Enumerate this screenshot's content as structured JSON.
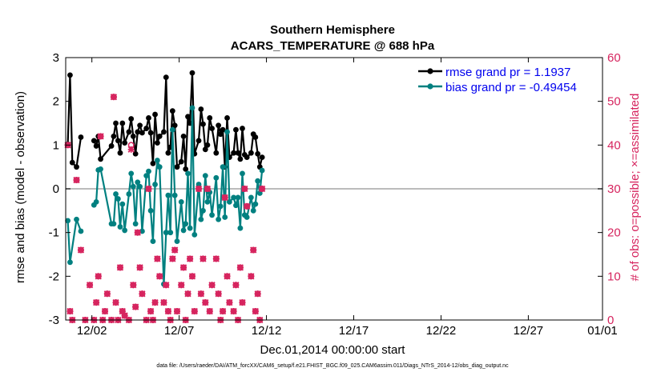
{
  "chart_data": {
    "type": "line",
    "title_line1": "Southern Hemisphere",
    "title_line2": "ACARS_TEMPERATURE @ 688 hPa",
    "xlabel": "Dec.01,2014 00:00:00 start",
    "ylabel_left": "rmse and bias (model - observation)",
    "ylabel_right": "# of obs: o=possible; ×=assimilated",
    "footer": "data file: /Users/raeder/DAI/ATM_forcXX/CAM6_setup/f.e21.FHIST_BGC.f09_025.CAM6assim.011/Diags_NTrS_2014-12/obs_diag_output.nc",
    "xlim": [
      0.5,
      31.25
    ],
    "ylim_left": [
      -3,
      3
    ],
    "ylim_right": [
      0,
      60
    ],
    "x_ticks": [
      {
        "x": 2,
        "label": "12/02"
      },
      {
        "x": 7,
        "label": "12/07"
      },
      {
        "x": 12,
        "label": "12/12"
      },
      {
        "x": 17,
        "label": "12/17"
      },
      {
        "x": 22,
        "label": "12/22"
      },
      {
        "x": 27,
        "label": "12/27"
      },
      {
        "x": 32,
        "label": "01/01"
      }
    ],
    "y_ticks_left": [
      -3,
      -2,
      -1,
      0,
      1,
      2,
      3
    ],
    "y_ticks_right": [
      0,
      10,
      20,
      30,
      40,
      50,
      60
    ],
    "colors": {
      "rmse": "#000000",
      "bias": "#008080",
      "obs": "#d6245e",
      "legend_text": "#0000ee",
      "zero_line": "#bbbbbb"
    },
    "series": [
      {
        "name": "rmse grand pr = 1.1937",
        "segments": [
          [
            [
              0.62,
              1.02
            ],
            [
              0.75,
              2.6
            ],
            [
              0.88,
              0.6
            ],
            [
              1.12,
              0.5
            ],
            [
              1.37,
              1.18
            ]
          ],
          [
            [
              2.12,
              1.1
            ],
            [
              2.25,
              0.98
            ],
            [
              2.37,
              1.2
            ],
            [
              2.5,
              0.68
            ],
            [
              3.12,
              0.98
            ],
            [
              3.25,
              1.2
            ],
            [
              3.37,
              1.5
            ],
            [
              3.5,
              1.1
            ],
            [
              3.62,
              0.82
            ],
            [
              3.75,
              1.5
            ],
            [
              3.88,
              1.05
            ],
            [
              4.12,
              1.3
            ],
            [
              4.25,
              1.6
            ],
            [
              4.37,
              1.2
            ],
            [
              4.5,
              0.8
            ],
            [
              4.62,
              1.3
            ],
            [
              4.75,
              1.45
            ],
            [
              4.88,
              1.28
            ],
            [
              5.12,
              1.38
            ],
            [
              5.25,
              1.62
            ],
            [
              5.37,
              1.28
            ],
            [
              5.5,
              0.58
            ],
            [
              5.62,
              1.7
            ],
            [
              5.75,
              1.05
            ],
            [
              5.88,
              1.2
            ],
            [
              6.12,
              1.3
            ],
            [
              6.25,
              2.55
            ],
            [
              6.37,
              0.82
            ],
            [
              6.5,
              0.95
            ],
            [
              6.62,
              1.78
            ],
            [
              6.75,
              1.45
            ],
            [
              6.88,
              0.5
            ],
            [
              7.12,
              0.62
            ],
            [
              7.25,
              1.2
            ],
            [
              7.37,
              0.45
            ],
            [
              7.5,
              1.65
            ],
            [
              7.62,
              1.5
            ],
            [
              7.75,
              2.65
            ],
            [
              7.88,
              0.8
            ],
            [
              8.12,
              1.1
            ],
            [
              8.25,
              1.82
            ],
            [
              8.37,
              1.48
            ],
            [
              8.5,
              0.9
            ],
            [
              8.62,
              1.0
            ],
            [
              8.75,
              1.62
            ],
            [
              8.88,
              1.38
            ],
            [
              9.12,
              0.82
            ],
            [
              9.25,
              1.45
            ],
            [
              9.37,
              1.25
            ],
            [
              9.5,
              1.35
            ],
            [
              9.62,
              0.5
            ],
            [
              9.75,
              1.62
            ],
            [
              9.88,
              0.72
            ],
            [
              10.12,
              0.82
            ],
            [
              10.25,
              1.35
            ],
            [
              10.37,
              0.82
            ],
            [
              10.5,
              0.68
            ],
            [
              10.62,
              1.38
            ],
            [
              10.75,
              0.78
            ],
            [
              10.88,
              0.72
            ],
            [
              11.12,
              0.82
            ],
            [
              11.25,
              1.25
            ],
            [
              11.37,
              1.18
            ],
            [
              11.5,
              0.8
            ],
            [
              11.62,
              0.5
            ],
            [
              11.75,
              0.72
            ]
          ]
        ]
      },
      {
        "name": "bias grand pr = -0.49454",
        "segments": [
          [
            [
              0.62,
              -0.73
            ],
            [
              0.75,
              -1.68
            ],
            [
              1.12,
              -0.7
            ],
            [
              1.37,
              -0.97
            ]
          ],
          [
            [
              2.12,
              -0.37
            ],
            [
              2.25,
              -0.3
            ],
            [
              2.37,
              0.43
            ],
            [
              2.5,
              0.45
            ],
            [
              3.12,
              -0.8
            ],
            [
              3.25,
              -0.8
            ],
            [
              3.37,
              -0.12
            ],
            [
              3.5,
              -0.23
            ],
            [
              3.62,
              -0.87
            ],
            [
              3.75,
              -0.35
            ],
            [
              3.88,
              -0.95
            ],
            [
              4.12,
              -0.12
            ],
            [
              4.25,
              0.35
            ],
            [
              4.37,
              0.05
            ],
            [
              4.5,
              -0.8
            ],
            [
              4.62,
              0.15
            ],
            [
              4.75,
              0.05
            ],
            [
              4.88,
              -0.97
            ],
            [
              5.12,
              0.3
            ],
            [
              5.25,
              0.4
            ],
            [
              5.37,
              -0.5
            ],
            [
              5.5,
              -1.2
            ],
            [
              5.62,
              0.1
            ],
            [
              5.75,
              0.65
            ],
            [
              5.88,
              0.5
            ],
            [
              6.12,
              -2.18
            ],
            [
              6.25,
              -1.0
            ],
            [
              6.37,
              -0.15
            ],
            [
              6.5,
              -1.0
            ],
            [
              6.62,
              1.35
            ],
            [
              6.75,
              -0.15
            ],
            [
              6.88,
              -1.2
            ],
            [
              7.12,
              -0.3
            ],
            [
              7.25,
              -0.95
            ],
            [
              7.37,
              -0.8
            ],
            [
              7.5,
              0.35
            ],
            [
              7.62,
              -0.9
            ],
            [
              7.75,
              1.85
            ],
            [
              7.88,
              -1.05
            ],
            [
              8.12,
              0.1
            ],
            [
              8.25,
              -0.7
            ],
            [
              8.37,
              -0.5
            ],
            [
              8.5,
              0.3
            ],
            [
              8.62,
              -0.3
            ],
            [
              8.75,
              -0.08
            ],
            [
              8.88,
              -0.6
            ],
            [
              9.12,
              0.25
            ],
            [
              9.25,
              -0.7
            ],
            [
              9.37,
              -0.4
            ],
            [
              9.5,
              0.5
            ],
            [
              9.62,
              -0.65
            ],
            [
              9.75,
              1.3
            ],
            [
              9.88,
              -0.3
            ],
            [
              10.12,
              -0.2
            ],
            [
              10.25,
              -0.38
            ],
            [
              10.37,
              -0.2
            ],
            [
              10.5,
              -0.9
            ],
            [
              10.62,
              0.35
            ],
            [
              10.75,
              -0.6
            ],
            [
              10.88,
              -0.65
            ],
            [
              11.12,
              -0.2
            ],
            [
              11.25,
              -0.5
            ],
            [
              11.37,
              -0.35
            ],
            [
              11.5,
              0.18
            ],
            [
              11.62,
              -0.1
            ],
            [
              11.75,
              0.42
            ]
          ]
        ]
      }
    ],
    "obs_possible_x": [
      0.62,
      0.75,
      0.88,
      1.12,
      1.37,
      1.62,
      1.88,
      2.12,
      2.25,
      2.37,
      2.5,
      2.62,
      2.75,
      2.88,
      3.12,
      3.25,
      3.37,
      3.5,
      3.62,
      3.75,
      3.88,
      4.12,
      4.25,
      4.37,
      4.5,
      4.62,
      4.75,
      4.88,
      5.12,
      5.25,
      5.37,
      5.5,
      5.62,
      5.75,
      5.88,
      6.12,
      6.25,
      6.37,
      6.5,
      6.62,
      6.75,
      6.88,
      7.12,
      7.25,
      7.37,
      7.5,
      7.62,
      7.75,
      7.88,
      8.12,
      8.25,
      8.37,
      8.5,
      8.62,
      8.75,
      8.88,
      9.12,
      9.25,
      9.37,
      9.5,
      9.62,
      9.75,
      9.88,
      10.12,
      10.25,
      10.37,
      10.5,
      10.62,
      10.75,
      10.88,
      11.12,
      11.25,
      11.37,
      11.5,
      11.62,
      11.75
    ],
    "obs_possible_y": [
      40,
      2,
      0,
      32,
      16,
      0,
      8,
      0,
      4,
      10,
      42,
      0,
      2,
      6,
      0,
      51,
      4,
      0,
      12,
      2,
      1,
      0,
      40,
      8,
      3,
      20,
      12,
      6,
      0,
      30,
      2,
      0,
      4,
      14,
      10,
      4,
      8,
      2,
      0,
      14,
      16,
      2,
      8,
      12,
      0,
      6,
      14,
      10,
      2,
      30,
      6,
      14,
      4,
      30,
      2,
      8,
      14,
      6,
      0,
      2,
      28,
      10,
      4,
      2,
      8,
      0,
      12,
      4,
      30,
      26,
      10,
      16,
      2,
      6,
      0,
      30
    ],
    "obs_assim_x": [
      0.62,
      0.75,
      0.88,
      1.12,
      1.37,
      1.62,
      1.88,
      2.12,
      2.25,
      2.37,
      2.5,
      2.62,
      2.75,
      2.88,
      3.12,
      3.25,
      3.37,
      3.5,
      3.62,
      3.75,
      3.88,
      4.12,
      4.25,
      4.37,
      4.5,
      4.62,
      4.75,
      4.88,
      5.12,
      5.25,
      5.37,
      5.5,
      5.62,
      5.75,
      5.88,
      6.12,
      6.25,
      6.37,
      6.5,
      6.62,
      6.75,
      6.88,
      7.12,
      7.25,
      7.37,
      7.5,
      7.62,
      7.75,
      7.88,
      8.12,
      8.25,
      8.37,
      8.5,
      8.62,
      8.75,
      8.88,
      9.12,
      9.25,
      9.37,
      9.5,
      9.62,
      9.75,
      9.88,
      10.12,
      10.25,
      10.37,
      10.5,
      10.62,
      10.75,
      10.88,
      11.12,
      11.25,
      11.37,
      11.5,
      11.62,
      11.75
    ],
    "obs_assim_y": [
      40,
      2,
      0,
      32,
      16,
      0,
      8,
      0,
      4,
      10,
      42,
      0,
      2,
      6,
      0,
      51,
      4,
      0,
      12,
      2,
      1,
      0,
      39,
      8,
      3,
      20,
      12,
      6,
      0,
      30,
      2,
      0,
      4,
      14,
      10,
      4,
      8,
      2,
      0,
      14,
      16,
      2,
      8,
      12,
      0,
      6,
      14,
      10,
      2,
      30,
      6,
      14,
      4,
      30,
      2,
      8,
      14,
      6,
      0,
      2,
      28,
      10,
      4,
      2,
      8,
      0,
      12,
      4,
      30,
      26,
      10,
      16,
      2,
      6,
      0,
      30
    ]
  }
}
